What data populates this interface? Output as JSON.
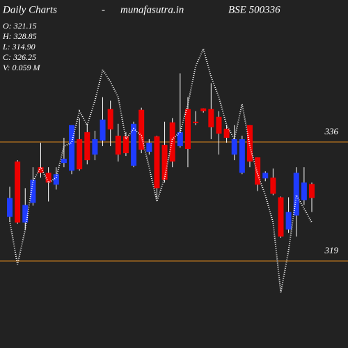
{
  "chart_data": {
    "type": "candlestick",
    "title": [
      "Daily Charts",
      "-",
      "munafasutra.in",
      "BSE 500336"
    ],
    "info": [
      "O: 321.15",
      "H: 328.85",
      "L: 314.90",
      "C: 326.25",
      "V: 0.059 M"
    ],
    "ylim": [
      306.57,
      356.28
    ],
    "yticks": [
      336,
      319
    ],
    "up_color": "#1f3cff",
    "down_color": "#ee0000",
    "level_color": "#e08a1e",
    "line_color": "#ffffff",
    "open": [
      325.3,
      333.2,
      324.5,
      327.3,
      332.4,
      331.6,
      329.9,
      333.0,
      331.9,
      336.4,
      337.4,
      334.2,
      336.2,
      340.7,
      336.9,
      336.8,
      332.6,
      340.6,
      334.6,
      336.8,
      335.6,
      338.8,
      335.4,
      340.7,
      338.9,
      340.8,
      340.7,
      339.6,
      337.9,
      334.2,
      331.6,
      338.4,
      333.8,
      330.8,
      330.9,
      328.1,
      323.5,
      325.5,
      327.7,
      330.0
    ],
    "high": [
      329.6,
      333.4,
      329.4,
      332.4,
      335.9,
      332.4,
      332.4,
      336.6,
      338.4,
      339.4,
      338.6,
      337.6,
      342.4,
      341.9,
      338.6,
      337.4,
      338.9,
      340.9,
      336.4,
      336.9,
      338.9,
      339.4,
      345.8,
      342.4,
      340.4,
      340.8,
      344.4,
      340.4,
      338.4,
      338.4,
      336.9,
      338.4,
      333.8,
      331.8,
      332.2,
      328.2,
      328.1,
      332.4,
      332.4,
      330.2
    ],
    "low": [
      324.7,
      324.3,
      323.5,
      326.9,
      330.9,
      327.5,
      329.2,
      332.4,
      331.4,
      331.9,
      332.8,
      333.4,
      335.4,
      335.4,
      333.2,
      334.0,
      332.4,
      334.4,
      334.2,
      328.0,
      330.2,
      332.4,
      335.2,
      332.4,
      338.4,
      340.2,
      336.4,
      334.2,
      335.9,
      333.4,
      331.4,
      332.4,
      329.0,
      330.4,
      328.4,
      322.3,
      323.0,
      322.5,
      327.0,
      326.0
    ],
    "close": [
      328.0,
      324.5,
      327.0,
      330.6,
      331.6,
      330.2,
      331.4,
      333.6,
      338.4,
      332.1,
      333.4,
      336.4,
      339.2,
      337.8,
      334.2,
      334.4,
      338.6,
      334.9,
      335.9,
      329.4,
      330.6,
      333.2,
      337.4,
      335.0,
      338.7,
      340.4,
      338.1,
      337.2,
      336.6,
      336.4,
      336.4,
      333.2,
      329.9,
      331.6,
      328.6,
      322.5,
      326.0,
      331.6,
      330.2,
      328.0
    ],
    "line": [
      324.7,
      318.5,
      323.5,
      330.4,
      332.4,
      330.2,
      330.9,
      335.4,
      335.9,
      340.4,
      338.4,
      341.9,
      346.3,
      344.6,
      342.4,
      336.4,
      337.9,
      336.9,
      332.4,
      327.5,
      330.9,
      336.4,
      337.4,
      341.4,
      346.8,
      349.3,
      345.3,
      342.4,
      338.4,
      336.4,
      341.4,
      335.4,
      331.4,
      328.4,
      324.5,
      314.5,
      320.5,
      328.4,
      326.5,
      324.5
    ]
  }
}
